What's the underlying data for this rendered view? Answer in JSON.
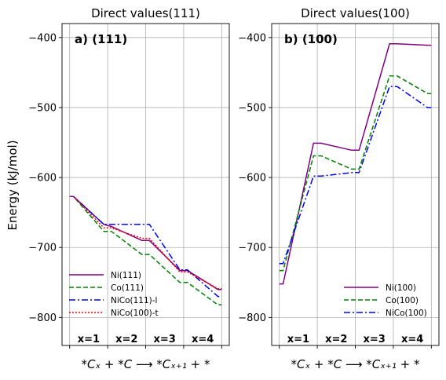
{
  "figure": {
    "ylabel": "Energy (kJ/mol)",
    "x_groups": [
      "x=1",
      "x=2",
      "x=3",
      "x=4"
    ]
  },
  "chart_data": [
    {
      "type": "line",
      "title": "Direct values(111)",
      "panel_label": "a) (111)",
      "xlabel": "*Cₓ + *C ⟶ *Cₓ₊₁ + *",
      "ylabel": "Energy (kJ/mol)",
      "ylim": [
        -840,
        -380
      ],
      "yticks": [
        -800,
        -700,
        -600,
        -500,
        -400
      ],
      "ytick_labels": [
        "−800",
        "−700",
        "−600",
        "−500",
        "−400"
      ],
      "grid": true,
      "legend_position": "lower-left",
      "series": [
        {
          "name": "Ni(111)",
          "color": "#800080",
          "dash": "solid",
          "points": [
            [
              0,
              -627
            ],
            [
              0.1,
              -627
            ],
            [
              0.9,
              -667
            ],
            [
              1.1,
              -670
            ],
            [
              1.9,
              -690
            ],
            [
              2.1,
              -690
            ],
            [
              2.9,
              -733
            ],
            [
              3.1,
              -733
            ],
            [
              3.9,
              -760
            ],
            [
              4.0,
              -760
            ]
          ]
        },
        {
          "name": "Co(111)",
          "color": "#008000",
          "dash": "dashed",
          "points": [
            [
              0,
              -627
            ],
            [
              0.1,
              -627
            ],
            [
              0.9,
              -677
            ],
            [
              1.1,
              -677
            ],
            [
              1.9,
              -710
            ],
            [
              2.1,
              -710
            ],
            [
              2.9,
              -750
            ],
            [
              3.1,
              -750
            ],
            [
              3.9,
              -782
            ],
            [
              4.0,
              -782
            ]
          ]
        },
        {
          "name": "NiCo(111)-l",
          "color": "#0000ff",
          "dash": "dashdot",
          "points": [
            [
              0,
              -627
            ],
            [
              0.1,
              -627
            ],
            [
              0.9,
              -667
            ],
            [
              1.1,
              -667
            ],
            [
              1.9,
              -667
            ],
            [
              2.1,
              -667
            ],
            [
              2.9,
              -732
            ],
            [
              3.1,
              -732
            ],
            [
              3.9,
              -770
            ],
            [
              4.0,
              -770
            ]
          ]
        },
        {
          "name": "NiCo(100)-t",
          "color": "#ff0000",
          "dash": "dotted",
          "points": [
            [
              0,
              -627
            ],
            [
              0.1,
              -627
            ],
            [
              0.9,
              -672
            ],
            [
              1.1,
              -672
            ],
            [
              1.9,
              -687
            ],
            [
              2.1,
              -687
            ],
            [
              2.9,
              -735
            ],
            [
              3.1,
              -735
            ],
            [
              3.9,
              -759
            ],
            [
              4.0,
              -759
            ]
          ]
        }
      ]
    },
    {
      "type": "line",
      "title": "Direct values(100)",
      "panel_label": "b) (100)",
      "xlabel": "*Cₓ + *C ⟶ *Cₓ₊₁ + *",
      "ylim": [
        -840,
        -380
      ],
      "yticks": [
        -800,
        -700,
        -600,
        -500,
        -400
      ],
      "ytick_labels": [
        "−800",
        "−700",
        "−600",
        "−500",
        "−400"
      ],
      "grid": true,
      "legend_position": "lower-right",
      "series": [
        {
          "name": "Ni(100)",
          "color": "#800080",
          "dash": "solid",
          "points": [
            [
              0,
              -752
            ],
            [
              0.1,
              -752
            ],
            [
              0.9,
              -551
            ],
            [
              1.1,
              -551
            ],
            [
              1.9,
              -561
            ],
            [
              2.1,
              -561
            ],
            [
              2.9,
              -409
            ],
            [
              3.1,
              -409
            ],
            [
              3.9,
              -411
            ],
            [
              4.0,
              -411
            ]
          ]
        },
        {
          "name": "Co(100)",
          "color": "#008000",
          "dash": "dashed",
          "points": [
            [
              0,
              -733
            ],
            [
              0.1,
              -733
            ],
            [
              0.9,
              -569
            ],
            [
              1.1,
              -569
            ],
            [
              1.9,
              -588
            ],
            [
              2.1,
              -588
            ],
            [
              2.9,
              -455
            ],
            [
              3.1,
              -455
            ],
            [
              3.9,
              -480
            ],
            [
              4.0,
              -480
            ]
          ]
        },
        {
          "name": "NiCo(100)",
          "color": "#0000ff",
          "dash": "dashdot",
          "points": [
            [
              0,
              -723
            ],
            [
              0.1,
              -723
            ],
            [
              0.9,
              -598
            ],
            [
              1.1,
              -598
            ],
            [
              1.9,
              -593
            ],
            [
              2.1,
              -593
            ],
            [
              2.9,
              -470
            ],
            [
              3.1,
              -470
            ],
            [
              3.9,
              -500
            ],
            [
              4.0,
              -500
            ]
          ]
        }
      ]
    }
  ]
}
